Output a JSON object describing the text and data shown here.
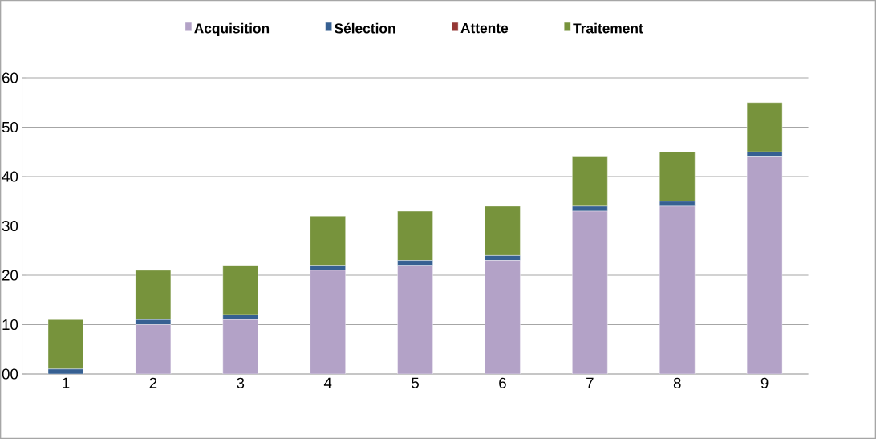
{
  "chart_data": {
    "type": "bar",
    "stacked": true,
    "categories": [
      "1",
      "2",
      "3",
      "4",
      "5",
      "6",
      "7",
      "8",
      "9"
    ],
    "series": [
      {
        "name": "Acquisition",
        "color": "#b3a2c7",
        "values": [
          0,
          10,
          11,
          21,
          22,
          23,
          33,
          34,
          44
        ]
      },
      {
        "name": "Sélection",
        "color": "#366092",
        "values": [
          1,
          1,
          1,
          1,
          1,
          1,
          1,
          1,
          1
        ]
      },
      {
        "name": "Attente",
        "color": "#953735",
        "values": [
          0,
          0,
          0,
          0,
          0,
          0,
          0,
          0,
          0
        ]
      },
      {
        "name": "Traitement",
        "color": "#77933c",
        "values": [
          10,
          10,
          10,
          10,
          10,
          10,
          10,
          10,
          10
        ]
      }
    ],
    "ylim": [
      0,
      60
    ],
    "yticks": [
      {
        "value": 0,
        "label": "00"
      },
      10,
      20,
      30,
      40,
      50,
      60
    ],
    "grid": "y",
    "legend": "top"
  }
}
